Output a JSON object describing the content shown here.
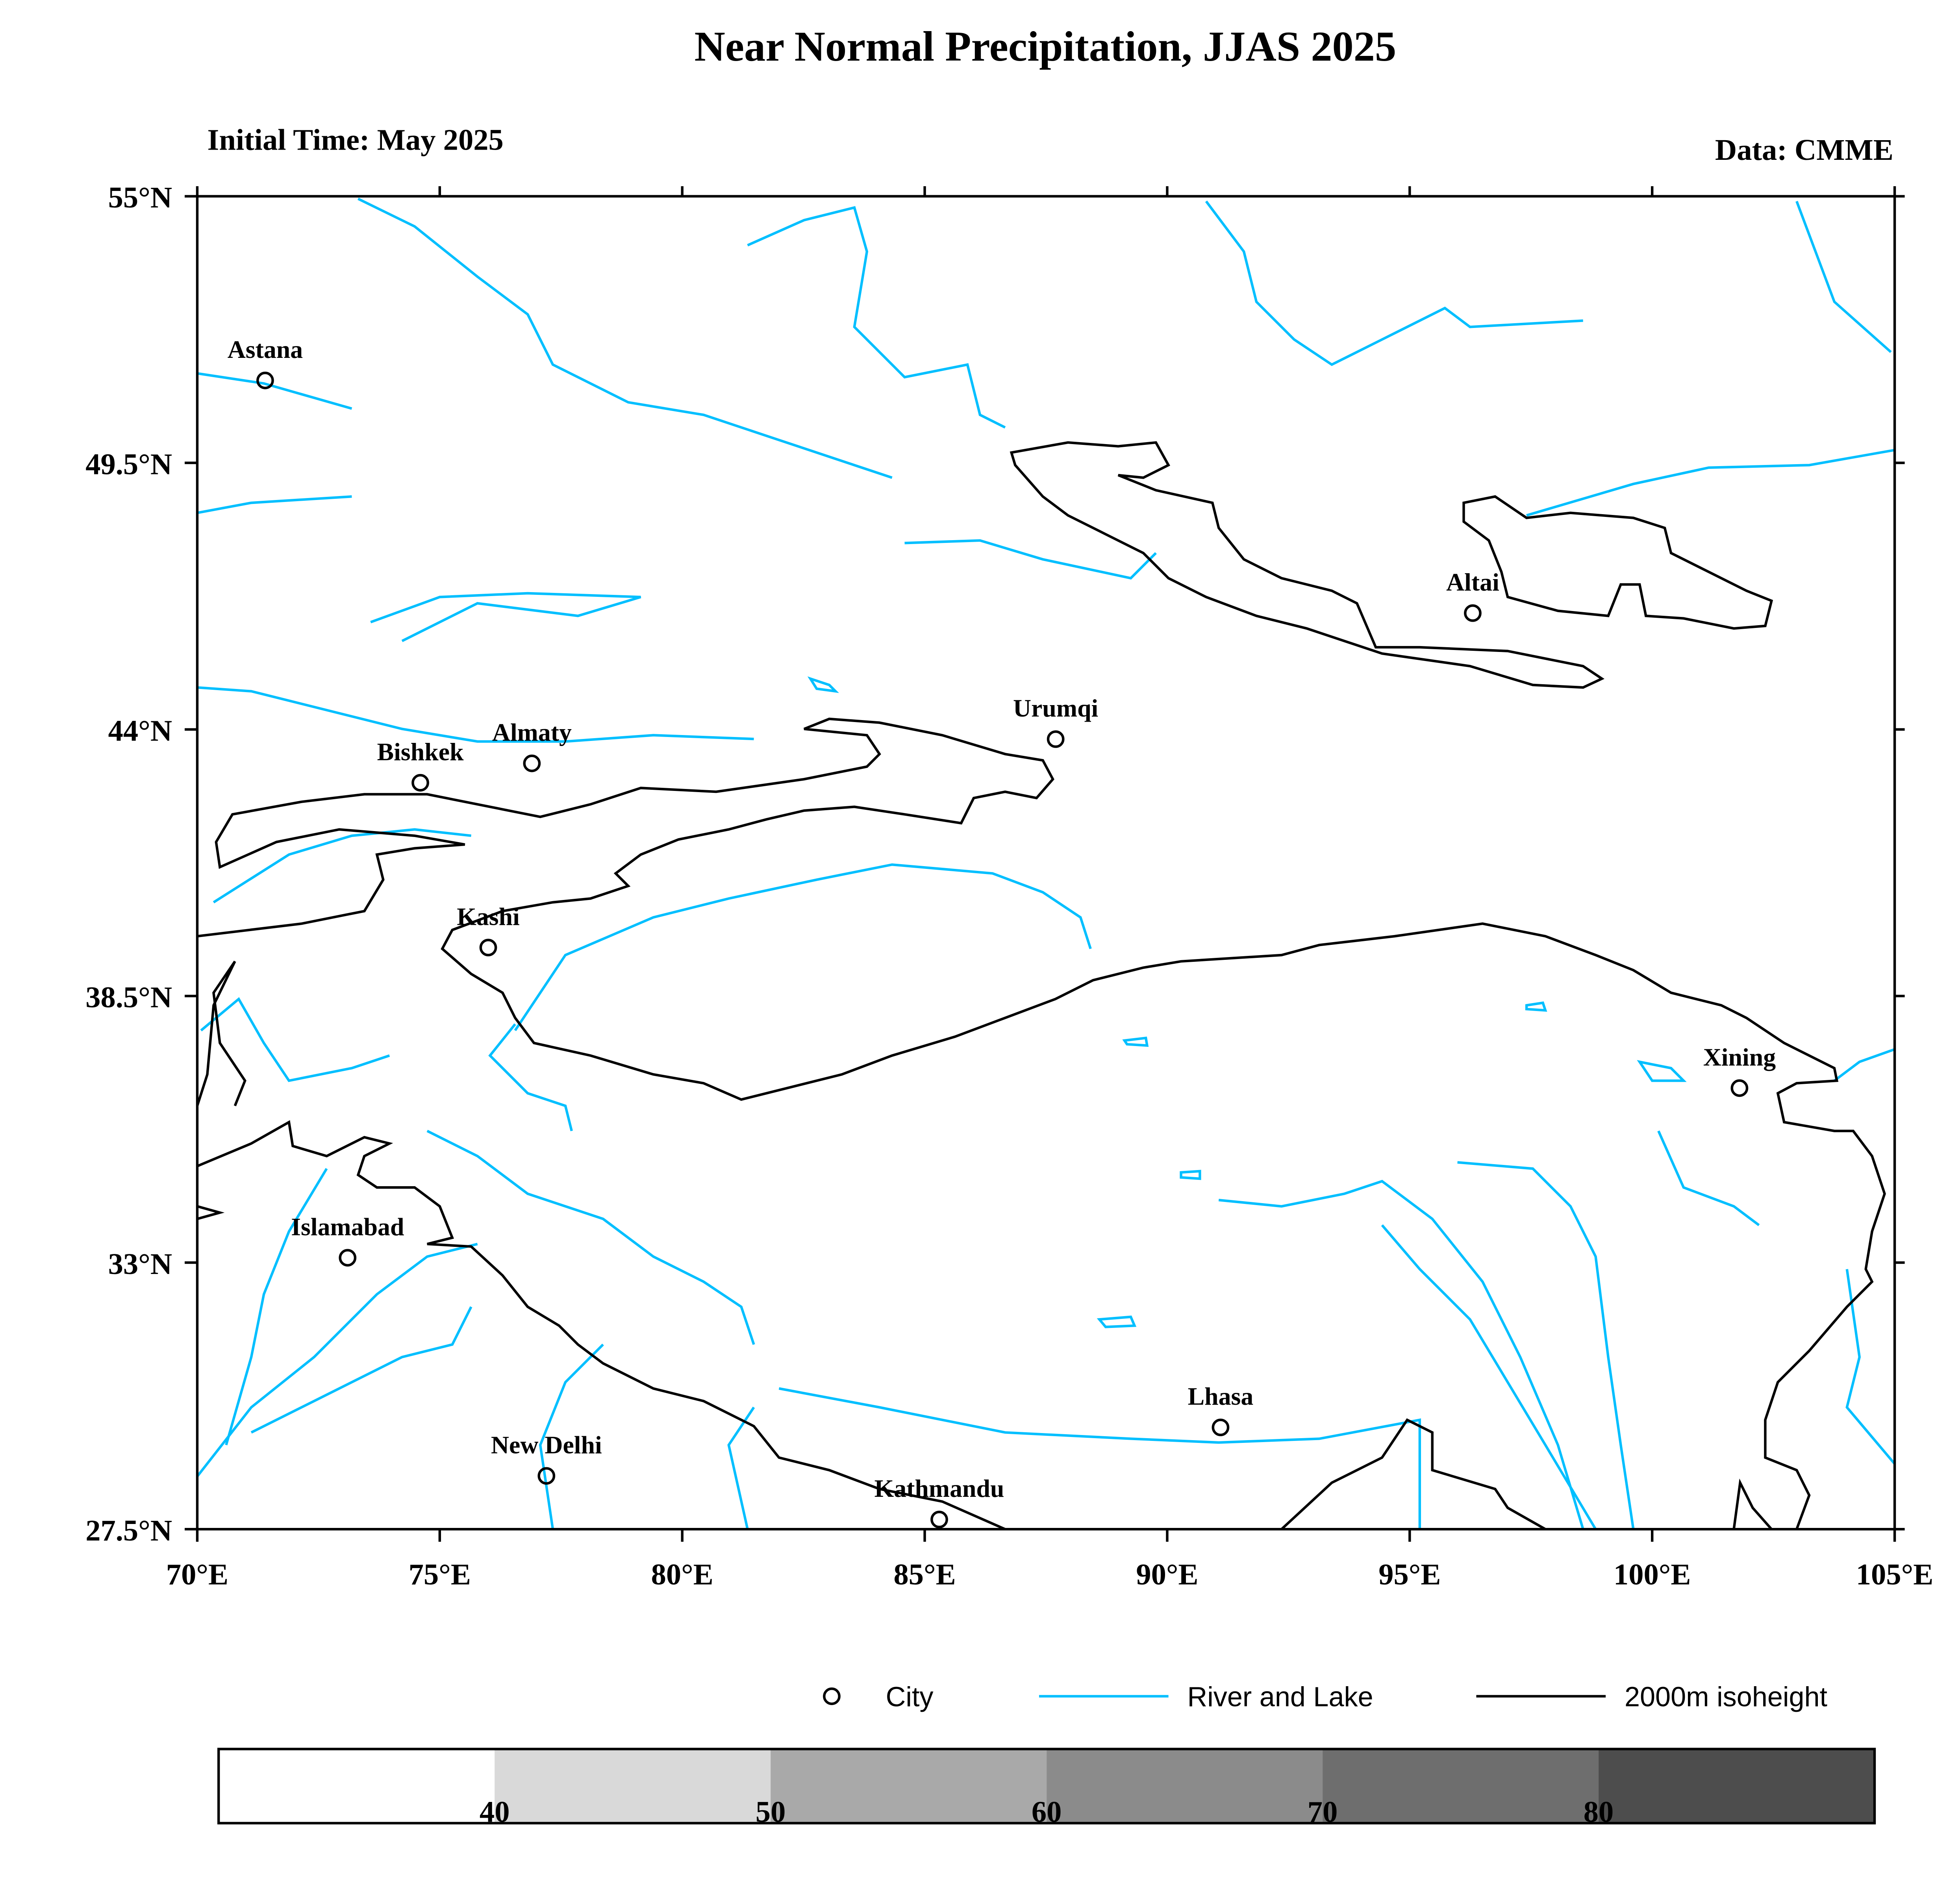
{
  "title": "Near Normal Precipitation, JJAS 2025",
  "initial_time": "Initial Time: May 2025",
  "data_source": "Data: CMME",
  "map": {
    "lon_range": [
      70,
      105
    ],
    "lat_range": [
      27.5,
      55
    ],
    "lon_ticks": [
      "70°E",
      "75°E",
      "80°E",
      "85°E",
      "90°E",
      "95°E",
      "100°E",
      "105°E"
    ],
    "lat_ticks": [
      "55°N",
      "49.5°N",
      "44°N",
      "38.5°N",
      "33°N",
      "27.5°N"
    ],
    "lon_tick_values": [
      70,
      75,
      80,
      85,
      90,
      95,
      100,
      105
    ],
    "lat_tick_values": [
      55,
      49.5,
      44,
      38.5,
      33,
      27.5
    ],
    "colors": {
      "river": "#00bfff",
      "isoheight": "#000000",
      "city": "#000000"
    },
    "cities": [
      {
        "name": "Astana",
        "lon": 71.4,
        "lat": 51.2
      },
      {
        "name": "Bishkek",
        "lon": 74.6,
        "lat": 42.9
      },
      {
        "name": "Almaty",
        "lon": 76.9,
        "lat": 43.3
      },
      {
        "name": "Urumqi",
        "lon": 87.7,
        "lat": 43.8
      },
      {
        "name": "Kashi",
        "lon": 76.0,
        "lat": 39.5
      },
      {
        "name": "Altai",
        "lon": 96.3,
        "lat": 46.4
      },
      {
        "name": "Xining",
        "lon": 101.8,
        "lat": 36.6
      },
      {
        "name": "Islamabad",
        "lon": 73.1,
        "lat": 33.1
      },
      {
        "name": "New Delhi",
        "lon": 77.2,
        "lat": 28.6
      },
      {
        "name": "Kathmandu",
        "lon": 85.3,
        "lat": 27.7
      },
      {
        "name": "Lhasa",
        "lon": 91.1,
        "lat": 29.6
      }
    ]
  },
  "legend": {
    "city": "City",
    "river": "River and Lake",
    "isoheight": "2000m isoheight"
  },
  "colorbar": {
    "unit": "%",
    "labels": [
      "40",
      "50",
      "60",
      "70",
      "80"
    ],
    "colors": [
      "#ffffff",
      "#d9d9d9",
      "#a9a9a9",
      "#8b8b8b",
      "#6e6e6e",
      "#4d4d4d"
    ]
  }
}
